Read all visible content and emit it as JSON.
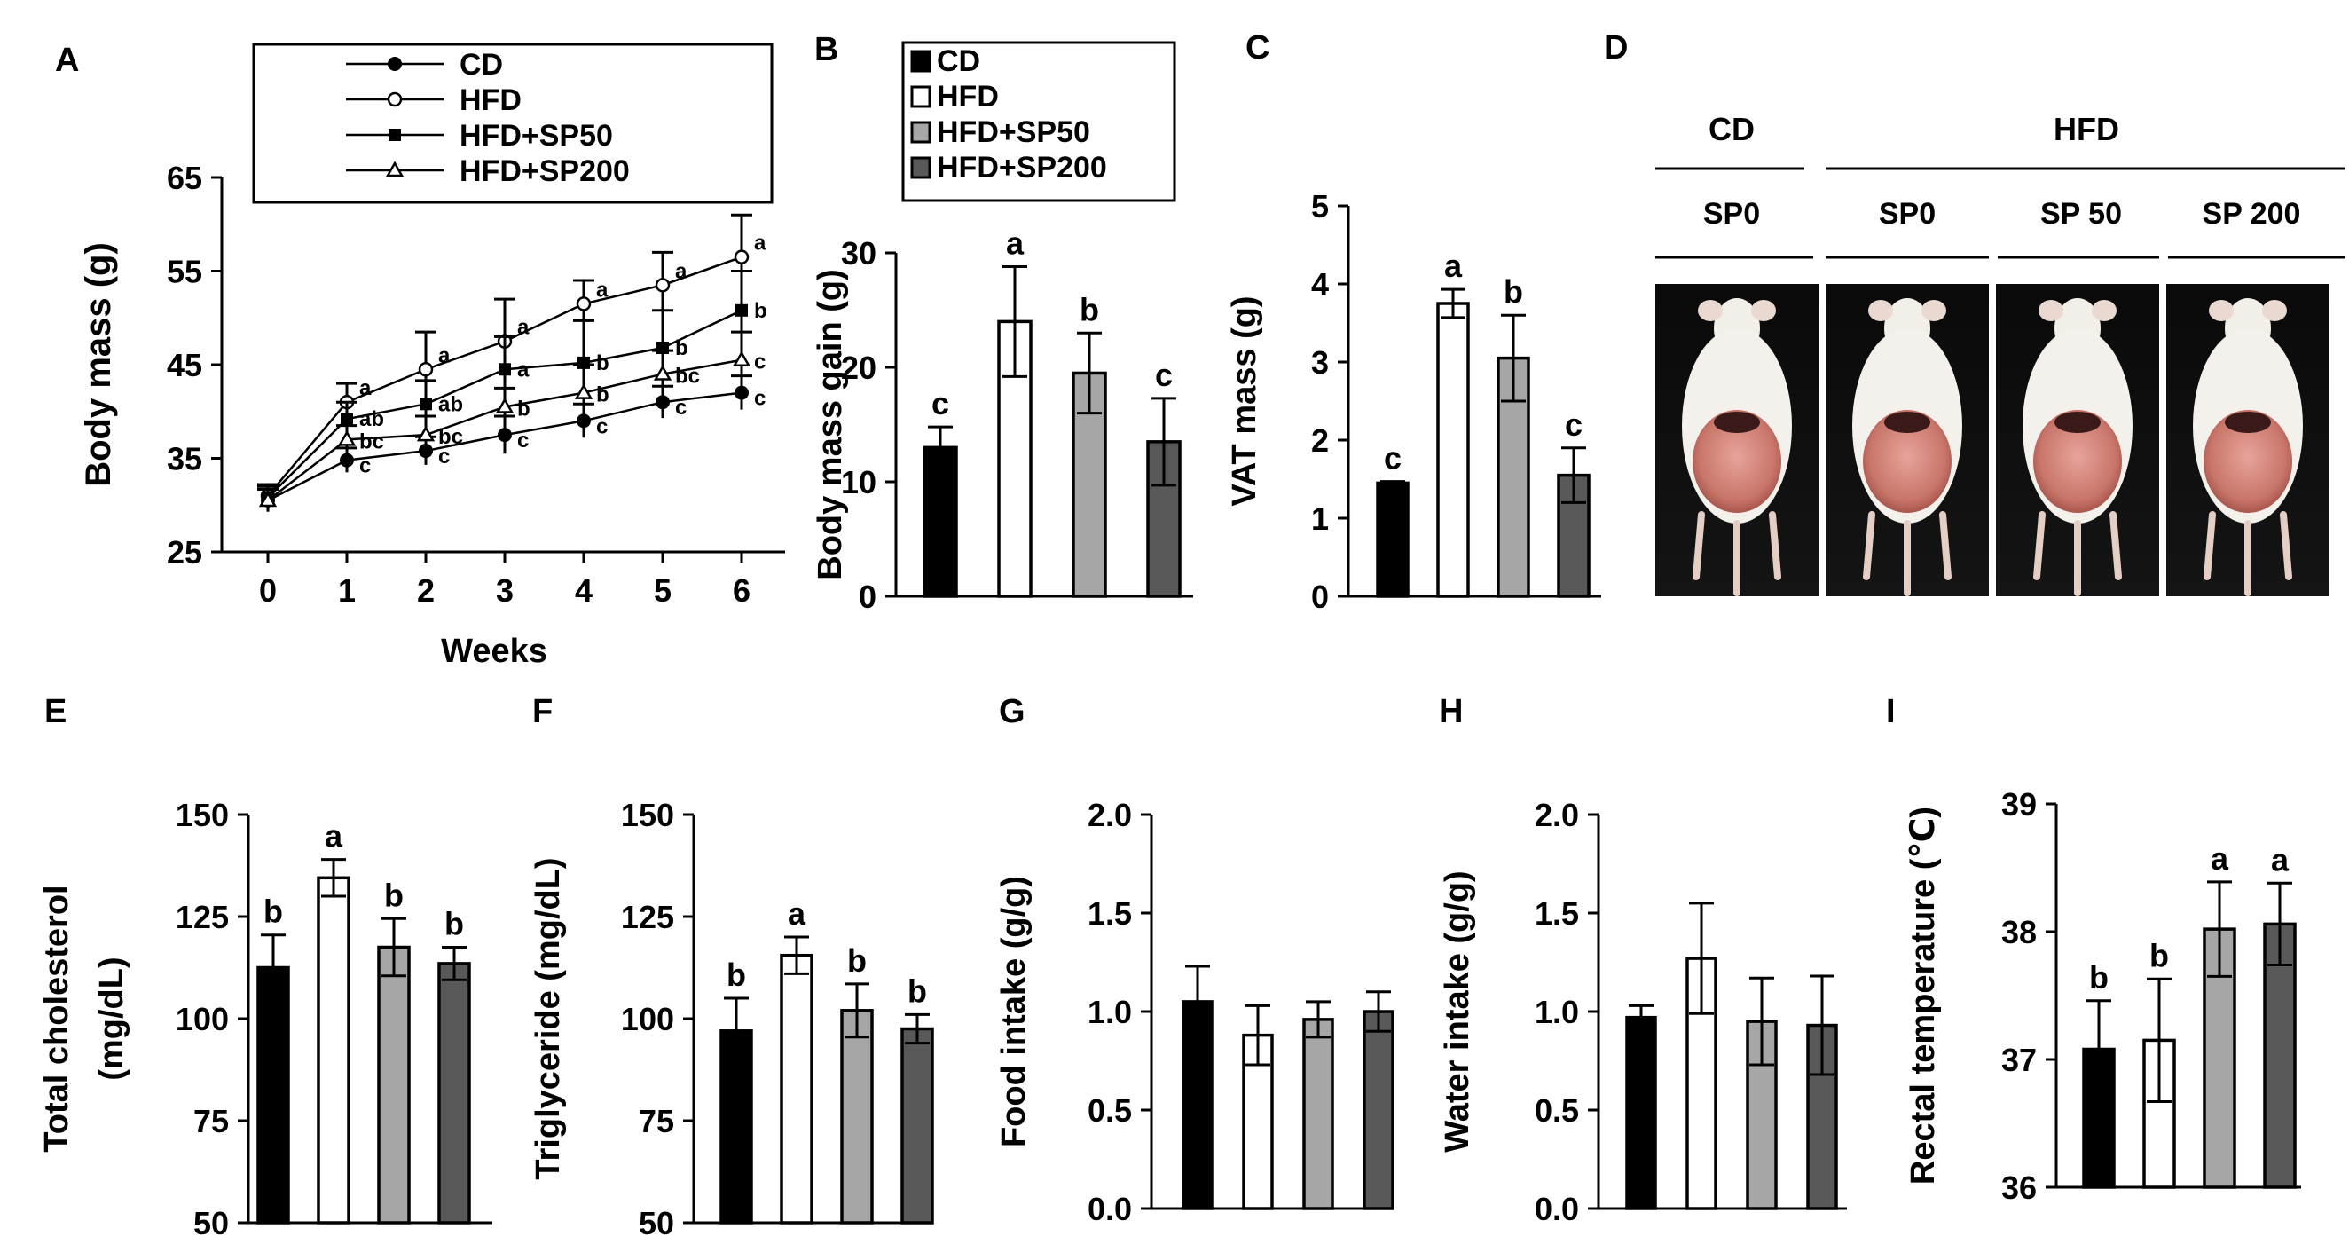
{
  "colors": {
    "CD": "#000000",
    "HFD": "#ffffff",
    "HFD+SP50": "#a6a6a6",
    "HFD+SP200": "#595959"
  },
  "chart_data": [
    {
      "id": "A",
      "type": "line",
      "panel_label": "A",
      "xlabel": "Weeks",
      "ylabel": "Body mass (g)",
      "x": [
        0,
        1,
        2,
        3,
        4,
        5,
        6
      ],
      "xticks": [
        "0",
        "1",
        "2",
        "3",
        "4",
        "5",
        "6"
      ],
      "ylim": [
        25,
        65
      ],
      "yticks": [
        "25",
        "35",
        "45",
        "55",
        "65"
      ],
      "legend": [
        "CD",
        "HFD",
        "HFD+SP50",
        "HFD+SP200"
      ],
      "series": [
        {
          "name": "CD",
          "marker": "filled-circle",
          "values": [
            30.5,
            34.8,
            35.8,
            37.5,
            39,
            41,
            42
          ],
          "errors": [
            1.2,
            1.3,
            1.5,
            2,
            1.8,
            1.7,
            1.8
          ],
          "letters": [
            "",
            "c",
            "c",
            "c",
            "c",
            "c",
            "c"
          ]
        },
        {
          "name": "HFD",
          "marker": "open-circle",
          "values": [
            31,
            41,
            44.5,
            47.5,
            51.5,
            53.5,
            56.5
          ],
          "errors": [
            1.2,
            2,
            4,
            4.5,
            2.5,
            3.5,
            4.5
          ],
          "letters": [
            "",
            "a",
            "a",
            "a",
            "a",
            "a",
            "a"
          ]
        },
        {
          "name": "HFD+SP50",
          "marker": "filled-square",
          "values": [
            30.8,
            39.2,
            40.8,
            44.5,
            45.2,
            46.8,
            50.8
          ],
          "errors": [
            1.2,
            1.8,
            2.5,
            3.5,
            4.5,
            4,
            4.2
          ],
          "letters": [
            "",
            "ab",
            "ab",
            "a",
            "b",
            "b",
            "b"
          ]
        },
        {
          "name": "HFD+SP200",
          "marker": "open-triangle",
          "values": [
            30.5,
            37,
            37.5,
            40.5,
            42,
            44,
            45.5
          ],
          "errors": [
            1.2,
            1.5,
            2,
            2,
            3,
            2.5,
            3
          ],
          "letters": [
            "",
            "bc",
            "bc",
            "b",
            "b",
            "bc",
            "c"
          ]
        }
      ]
    },
    {
      "id": "B",
      "type": "bar",
      "panel_label": "B",
      "ylabel": "Body mass gain (g)",
      "ylim": [
        0,
        30
      ],
      "yticks": [
        "0",
        "10",
        "20",
        "30"
      ],
      "categories": [
        "CD",
        "HFD",
        "HFD+SP50",
        "HFD+SP200"
      ],
      "values": [
        13,
        24,
        19.5,
        13.5
      ],
      "errors": [
        1.8,
        4.8,
        3.5,
        3.8
      ],
      "letters": [
        "c",
        "a",
        "b",
        "c"
      ],
      "legend": [
        "CD",
        "HFD",
        "HFD+SP50",
        "HFD+SP200"
      ]
    },
    {
      "id": "C",
      "type": "bar",
      "panel_label": "C",
      "ylabel": "VAT mass (g)",
      "ylim": [
        0,
        5
      ],
      "yticks": [
        "0",
        "1",
        "2",
        "3",
        "4",
        "5"
      ],
      "categories": [
        "CD",
        "HFD",
        "HFD+SP50",
        "HFD+SP200"
      ],
      "values": [
        1.45,
        3.75,
        3.05,
        1.55
      ],
      "errors": [
        0.02,
        0.18,
        0.55,
        0.35
      ],
      "letters": [
        "c",
        "a",
        "b",
        "c"
      ]
    },
    {
      "id": "E",
      "type": "bar",
      "panel_label": "E",
      "ylabel": [
        "Total cholesterol",
        "(mg/dL)"
      ],
      "ylim": [
        50,
        150
      ],
      "yticks": [
        "50",
        "75",
        "100",
        "125",
        "150"
      ],
      "categories": [
        "CD",
        "HFD",
        "HFD+SP50",
        "HFD+SP200"
      ],
      "values": [
        112.5,
        134.5,
        117.5,
        113.5
      ],
      "errors": [
        8,
        4.5,
        7,
        4
      ],
      "letters": [
        "b",
        "a",
        "b",
        "b"
      ]
    },
    {
      "id": "F",
      "type": "bar",
      "panel_label": "F",
      "ylabel": "Triglyceride (mg/dL)",
      "ylim": [
        50,
        150
      ],
      "yticks": [
        "50",
        "75",
        "100",
        "125",
        "150"
      ],
      "categories": [
        "CD",
        "HFD",
        "HFD+SP50",
        "HFD+SP200"
      ],
      "values": [
        97,
        115.5,
        102,
        97.5
      ],
      "errors": [
        8,
        4.5,
        6.5,
        3.5
      ],
      "letters": [
        "b",
        "a",
        "b",
        "b"
      ]
    },
    {
      "id": "G",
      "type": "bar",
      "panel_label": "G",
      "ylabel": "Food intake (g/g)",
      "ylim": [
        0,
        2
      ],
      "yticks": [
        "0.0",
        "0.5",
        "1.0",
        "1.5",
        "2.0"
      ],
      "categories": [
        "CD",
        "HFD",
        "HFD+SP50",
        "HFD+SP200"
      ],
      "values": [
        1.05,
        0.88,
        0.96,
        1.0
      ],
      "errors": [
        0.18,
        0.15,
        0.09,
        0.1
      ],
      "letters": [
        "",
        "",
        "",
        ""
      ]
    },
    {
      "id": "H",
      "type": "bar",
      "panel_label": "H",
      "ylabel": "Water intake (g/g)",
      "ylim": [
        0,
        2
      ],
      "yticks": [
        "0.0",
        "0.5",
        "1.0",
        "1.5",
        "2.0"
      ],
      "categories": [
        "CD",
        "HFD",
        "HFD+SP50",
        "HFD+SP200"
      ],
      "values": [
        0.97,
        1.27,
        0.95,
        0.93
      ],
      "errors": [
        0.06,
        0.28,
        0.22,
        0.25
      ],
      "letters": [
        "",
        "",
        "",
        ""
      ]
    },
    {
      "id": "I",
      "type": "bar",
      "panel_label": "I",
      "ylabel": "Rectal temperature (℃)",
      "ylim": [
        36,
        39
      ],
      "yticks": [
        "36",
        "37",
        "38",
        "39"
      ],
      "categories": [
        "CD",
        "HFD",
        "HFD+SP50",
        "HFD+SP200"
      ],
      "values": [
        37.08,
        37.15,
        38.02,
        38.06
      ],
      "errors": [
        0.38,
        0.48,
        0.37,
        0.32
      ],
      "letters": [
        "b",
        "b",
        "a",
        "a"
      ]
    }
  ],
  "photo_panel": {
    "panel_label": "D",
    "group_headers": [
      "CD",
      "HFD"
    ],
    "columns": [
      "SP0",
      "SP0",
      "SP 50",
      "SP 200"
    ]
  }
}
